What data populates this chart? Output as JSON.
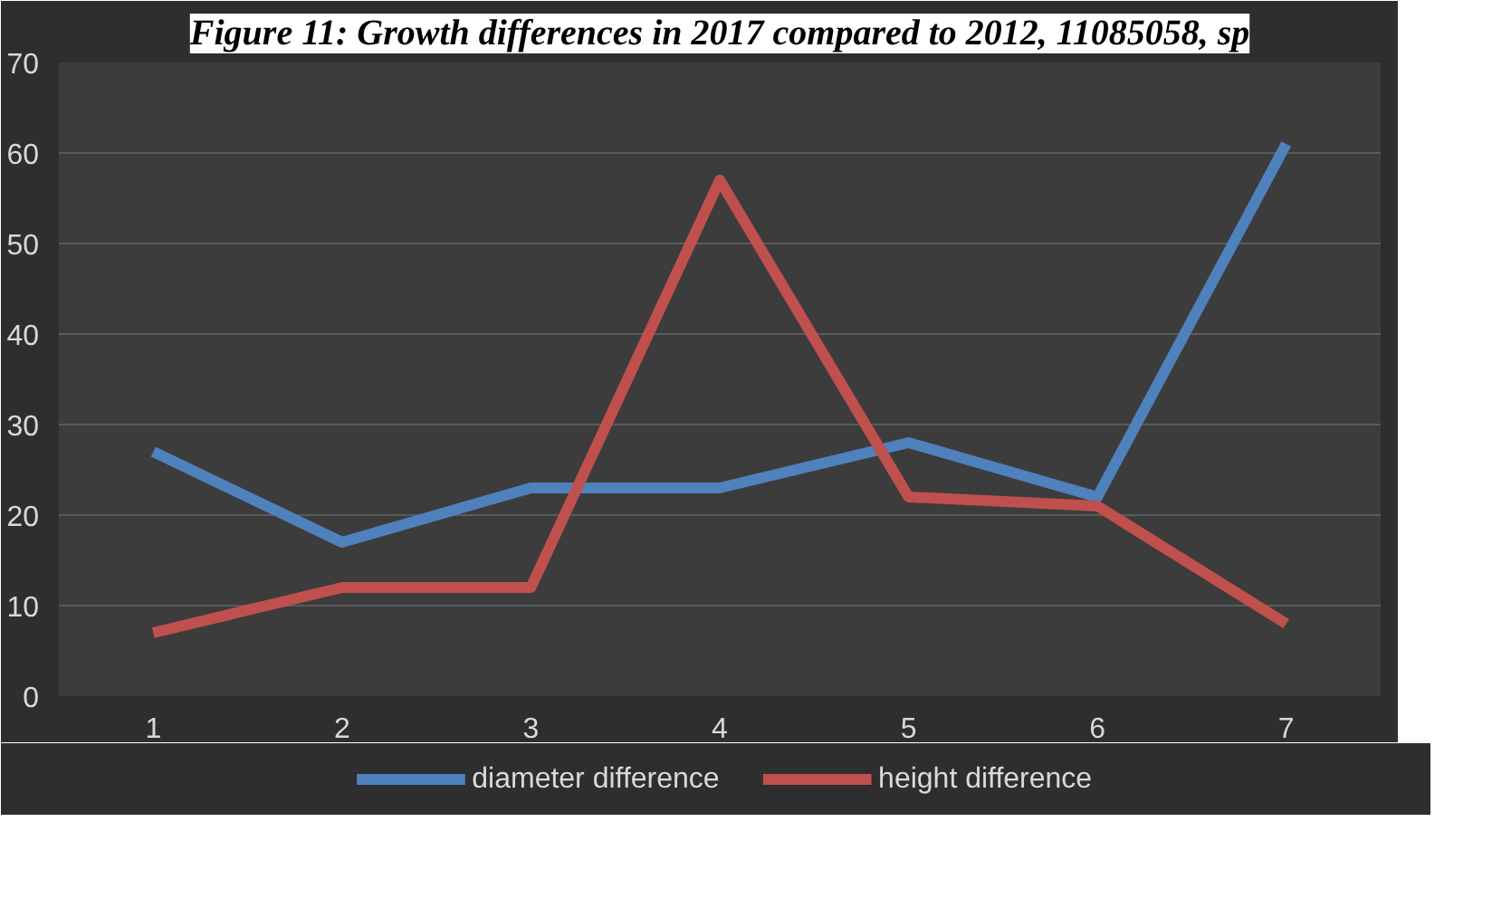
{
  "chart_data": {
    "type": "line",
    "title": "Figure 11: Growth differences in 2017 compared to 2012, 11085058, sp",
    "categories": [
      "1",
      "2",
      "3",
      "4",
      "5",
      "6",
      "7"
    ],
    "series": [
      {
        "name": "diameter difference",
        "color": "#4f81bd",
        "values": [
          27,
          17,
          23,
          23,
          28,
          22,
          61
        ]
      },
      {
        "name": "height difference",
        "color": "#c0504d",
        "values": [
          7,
          12,
          12,
          57,
          22,
          21,
          8
        ]
      }
    ],
    "ylim": [
      0,
      70
    ],
    "yticks": [
      0,
      10,
      20,
      30,
      40,
      50,
      60,
      70
    ],
    "grid": "y",
    "legend": "bottom",
    "marker": "none",
    "line_style": "solid"
  }
}
